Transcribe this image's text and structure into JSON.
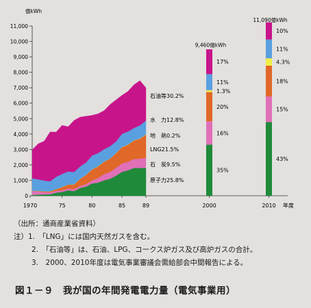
{
  "chart_data": {
    "type": "area",
    "y_unit": "億kWh",
    "x_axis_title": "年度",
    "ylim": [
      0,
      11000
    ],
    "y_ticks": [
      "0",
      "1,000",
      "2,000",
      "3,000",
      "4,000",
      "5,000",
      "6,000",
      "7,000",
      "8,000",
      "9,000",
      "10,000",
      "11,000"
    ],
    "x_tick_labels": [
      "1970",
      "75",
      "80",
      "85",
      "89",
      "2000",
      "2010"
    ],
    "stack_order_bottom_to_top": [
      "原子力",
      "石炭",
      "LNG",
      "地熱",
      "水力",
      "石油等"
    ],
    "colors": {
      "原子力": "#1f8a3a",
      "石炭": "#e070b8",
      "LNG": "#e06828",
      "地熱": "#f0ee48",
      "水力": "#5aa0e0",
      "石油等": "#c8148a"
    },
    "years": [
      1970,
      1971,
      1972,
      1973,
      1974,
      1975,
      1976,
      1977,
      1978,
      1979,
      1980,
      1981,
      1982,
      1983,
      1984,
      1985,
      1986,
      1987,
      1988,
      1989
    ],
    "series": [
      {
        "name": "原子力",
        "values": [
          50,
          80,
          90,
          100,
          200,
          250,
          350,
          300,
          500,
          600,
          800,
          850,
          1000,
          1100,
          1300,
          1550,
          1650,
          1800,
          1800,
          1800
        ]
      },
      {
        "name": "石炭",
        "values": [
          250,
          200,
          150,
          120,
          120,
          110,
          120,
          130,
          140,
          150,
          200,
          300,
          400,
          450,
          500,
          550,
          550,
          580,
          600,
          660
        ]
      },
      {
        "name": "LNG",
        "values": [
          20,
          30,
          40,
          60,
          100,
          200,
          250,
          300,
          450,
          600,
          700,
          750,
          800,
          850,
          950,
          1050,
          1100,
          1200,
          1300,
          1500
        ]
      },
      {
        "name": "地熱",
        "values": [
          5,
          5,
          5,
          5,
          5,
          5,
          5,
          5,
          5,
          5,
          10,
          10,
          10,
          10,
          10,
          12,
          12,
          12,
          12,
          14
        ]
      },
      {
        "name": "水力",
        "values": [
          800,
          750,
          700,
          650,
          800,
          850,
          850,
          800,
          800,
          800,
          900,
          850,
          800,
          800,
          750,
          850,
          850,
          800,
          850,
          900
        ]
      },
      {
        "name": "石油等",
        "values": [
          1850,
          2300,
          2550,
          3200,
          2900,
          3150,
          2900,
          3350,
          3200,
          3000,
          2600,
          2550,
          2500,
          2700,
          2700,
          2500,
          2600,
          2800,
          2900,
          2126
        ]
      }
    ],
    "labels_1989": [
      "石油等30.2%",
      "水　力12.8%",
      "地　熱0.2%",
      "LNG21.5%",
      "石　炭9.5%",
      "原子力25.8%"
    ],
    "projections": [
      {
        "year": "2000",
        "total": 9460,
        "total_label": "9,460億kWh",
        "values": [
          3311,
          1514,
          1892,
          123,
          1041,
          1608
        ],
        "pct_labels": [
          "35%",
          "16%",
          "20%",
          "1.3%",
          "11%",
          "17%"
        ]
      },
      {
        "year": "2010",
        "total": 11090,
        "total_label": "11,090億kWh",
        "values": [
          4769,
          1664,
          1996,
          477,
          1220,
          1109
        ],
        "pct_labels": [
          "43%",
          "15%",
          "18%",
          "4.3%",
          "11%",
          "10%"
        ]
      }
    ]
  },
  "notes": {
    "source": "（出所：通商産業省資料）",
    "note1": "注）1.　「LNG」には国内天然ガスを含む。",
    "note2": "2.　「石油等」は、石油、LPG、コークス炉ガス及び高炉ガスの合計。",
    "note3": "3.　2000、2010年度は電気事業審議会需給部会中間報告による。"
  },
  "caption": "図１－９　我が国の年間発電電力量（電気事業用）"
}
